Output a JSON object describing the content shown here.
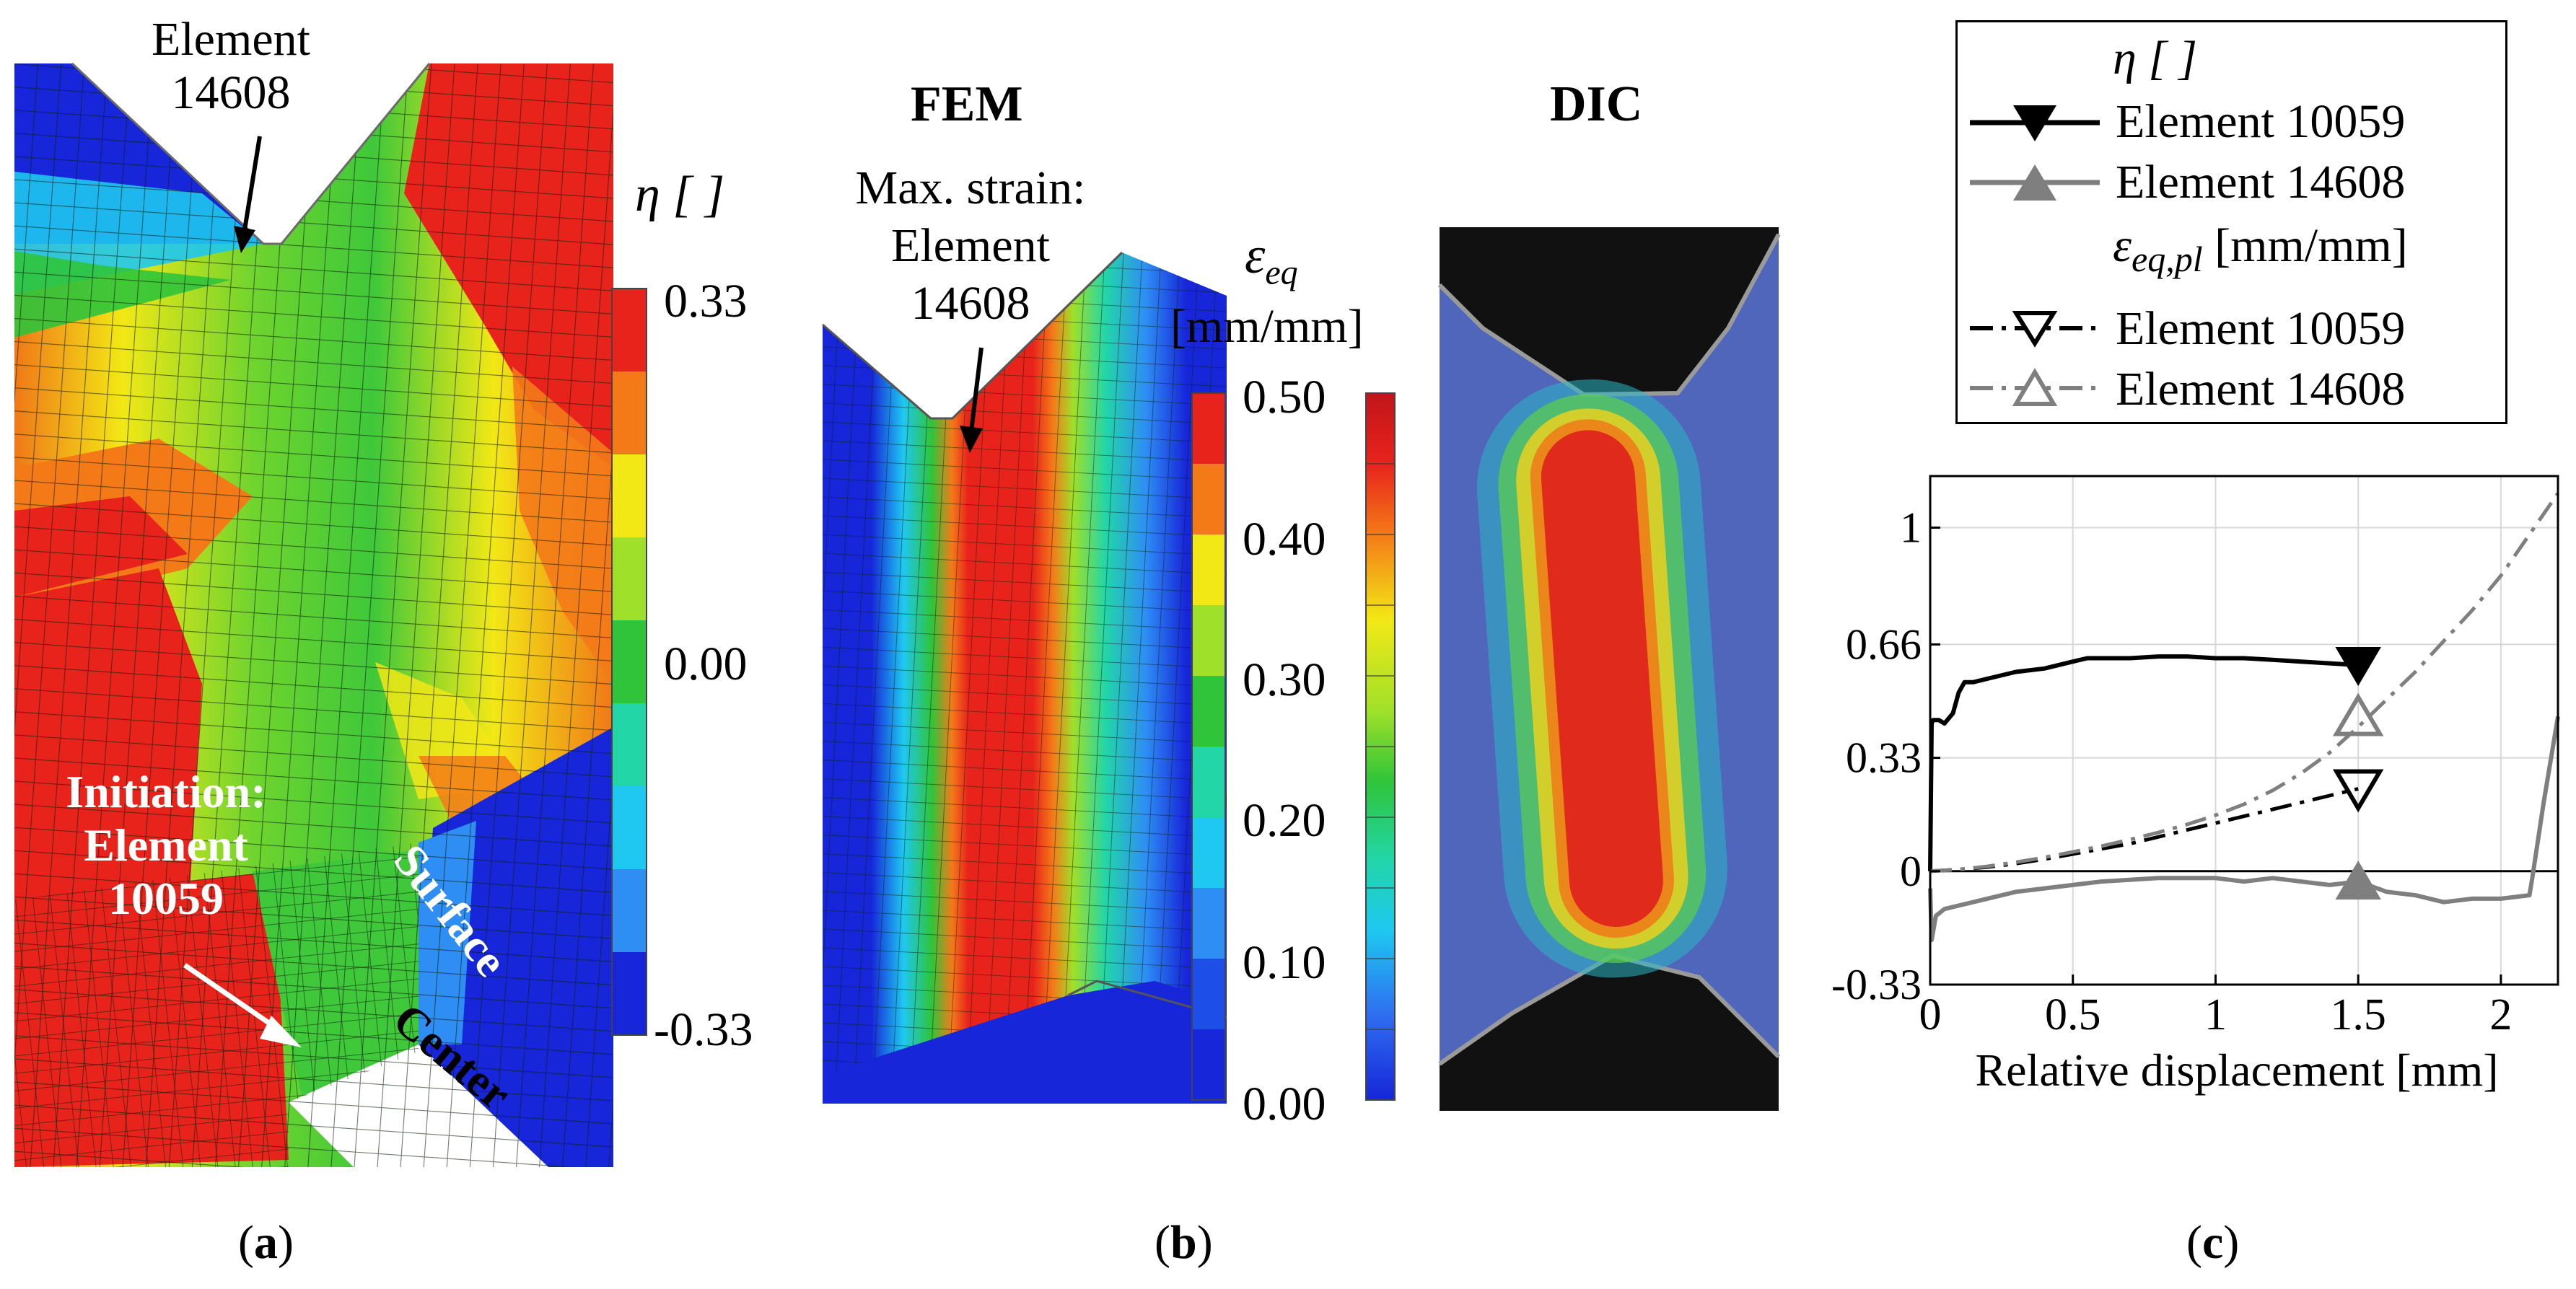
{
  "panel_a": {
    "callout_top": [
      "Element",
      "14608"
    ],
    "callout_initiation": [
      "Initiation:",
      "Element",
      "10059"
    ],
    "label_surface": "Surface",
    "label_center": "Center",
    "colorbar_title": "η [ ]",
    "colorbar_ticks": [
      "0.33",
      "0.00",
      "-0.33"
    ],
    "caption_open": "(",
    "caption_letter": "a",
    "caption_close": ")"
  },
  "panel_b": {
    "fem_title": "FEM",
    "dic_title": "DIC",
    "max_strain": [
      "Max. strain:",
      "Element",
      "14608"
    ],
    "colorbar_title_symbol": "ε",
    "colorbar_title_sub": "eq",
    "colorbar_units": "[mm/mm]",
    "colorbar_ticks": [
      "0.50",
      "0.40",
      "0.30",
      "0.20",
      "0.10",
      "0.00"
    ],
    "caption_open": "(",
    "caption_letter": "b",
    "caption_close": ")"
  },
  "panel_c": {
    "caption_open": "(",
    "caption_letter": "c",
    "caption_close": ")"
  },
  "colors": {
    "red": "#e8231c",
    "orange": "#f47a18",
    "yellow": "#f2e816",
    "lime": "#9fe02a",
    "green": "#2fc43a",
    "teal": "#22d6a8",
    "cyan": "#1ec8f0",
    "sky": "#2e8ef4",
    "blue": "#1626d8",
    "gray": "#7f7f7f"
  },
  "chart_data": {
    "type": "line",
    "xlabel": "Relative displacement [mm]",
    "ylabel": "",
    "xlim": [
      0,
      2.2
    ],
    "ylim": [
      -0.33,
      1.15
    ],
    "xticks": [
      0,
      0.5,
      1,
      1.5,
      2
    ],
    "xtick_labels": [
      "0",
      "0.5",
      "1",
      "1.5",
      "2"
    ],
    "yticks": [
      -0.33,
      0,
      0.33,
      0.66,
      1
    ],
    "ytick_labels": [
      "-0.33",
      "0",
      "0.33",
      "0.66",
      "1"
    ],
    "grid": true,
    "legend": {
      "position": "top-right",
      "header1": "η [ ]",
      "header2_symbol": "ε",
      "header2_sub": "eq,pl",
      "header2_units": "[mm/mm]",
      "entries": [
        "Element 10059",
        "Element 14608",
        "Element 10059",
        "Element 14608"
      ]
    },
    "series": [
      {
        "name": "η Element 10059",
        "style": "solid",
        "color": "#000000",
        "marker": "filled-down-triangle",
        "marker_x": 1.5,
        "marker_y": 0.6,
        "x": [
          0.0,
          0.005,
          0.01,
          0.03,
          0.05,
          0.08,
          0.1,
          0.12,
          0.15,
          0.2,
          0.3,
          0.4,
          0.5,
          0.55,
          0.6,
          0.7,
          0.8,
          0.9,
          1.0,
          1.1,
          1.2,
          1.3,
          1.4,
          1.5
        ],
        "y": [
          0.0,
          0.43,
          0.44,
          0.44,
          0.43,
          0.46,
          0.52,
          0.55,
          0.55,
          0.56,
          0.58,
          0.59,
          0.61,
          0.62,
          0.62,
          0.62,
          0.625,
          0.625,
          0.62,
          0.62,
          0.615,
          0.61,
          0.605,
          0.6
        ]
      },
      {
        "name": "η Element 14608",
        "style": "solid",
        "color": "#7f7f7f",
        "marker": "filled-up-triangle",
        "marker_x": 1.5,
        "marker_y": -0.03,
        "x": [
          0.0,
          0.005,
          0.02,
          0.05,
          0.1,
          0.2,
          0.3,
          0.4,
          0.5,
          0.6,
          0.8,
          1.0,
          1.1,
          1.2,
          1.3,
          1.4,
          1.5,
          1.6,
          1.7,
          1.8,
          1.9,
          2.0,
          2.1,
          2.11,
          2.15,
          2.2
        ],
        "y": [
          -0.05,
          -0.2,
          -0.13,
          -0.11,
          -0.1,
          -0.08,
          -0.06,
          -0.05,
          -0.04,
          -0.03,
          -0.02,
          -0.02,
          -0.03,
          -0.02,
          -0.03,
          -0.04,
          -0.03,
          -0.06,
          -0.07,
          -0.09,
          -0.08,
          -0.08,
          -0.07,
          -0.02,
          0.2,
          0.45
        ]
      },
      {
        "name": "ε eq,pl Element 10059",
        "style": "dashdot",
        "color": "#000000",
        "marker": "open-down-triangle",
        "marker_x": 1.5,
        "marker_y": 0.24,
        "x": [
          0.0,
          0.1,
          0.2,
          0.3,
          0.4,
          0.5,
          0.6,
          0.7,
          0.8,
          0.9,
          1.0,
          1.1,
          1.2,
          1.3,
          1.4,
          1.5
        ],
        "y": [
          0.0,
          0.005,
          0.012,
          0.022,
          0.035,
          0.05,
          0.065,
          0.08,
          0.1,
          0.12,
          0.14,
          0.16,
          0.18,
          0.2,
          0.22,
          0.24
        ]
      },
      {
        "name": "ε eq,pl Element 14608",
        "style": "dashdot",
        "color": "#7f7f7f",
        "marker": "open-up-triangle",
        "marker_x": 1.5,
        "marker_y": 0.45,
        "x": [
          0.0,
          0.1,
          0.2,
          0.3,
          0.4,
          0.5,
          0.6,
          0.7,
          0.8,
          0.9,
          1.0,
          1.1,
          1.2,
          1.3,
          1.4,
          1.5,
          1.6,
          1.7,
          1.8,
          1.9,
          2.0,
          2.1,
          2.2
        ],
        "y": [
          0.0,
          0.005,
          0.014,
          0.026,
          0.04,
          0.056,
          0.073,
          0.092,
          0.113,
          0.136,
          0.163,
          0.195,
          0.235,
          0.285,
          0.345,
          0.42,
          0.5,
          0.58,
          0.67,
          0.76,
          0.86,
          0.98,
          1.1
        ]
      }
    ]
  }
}
